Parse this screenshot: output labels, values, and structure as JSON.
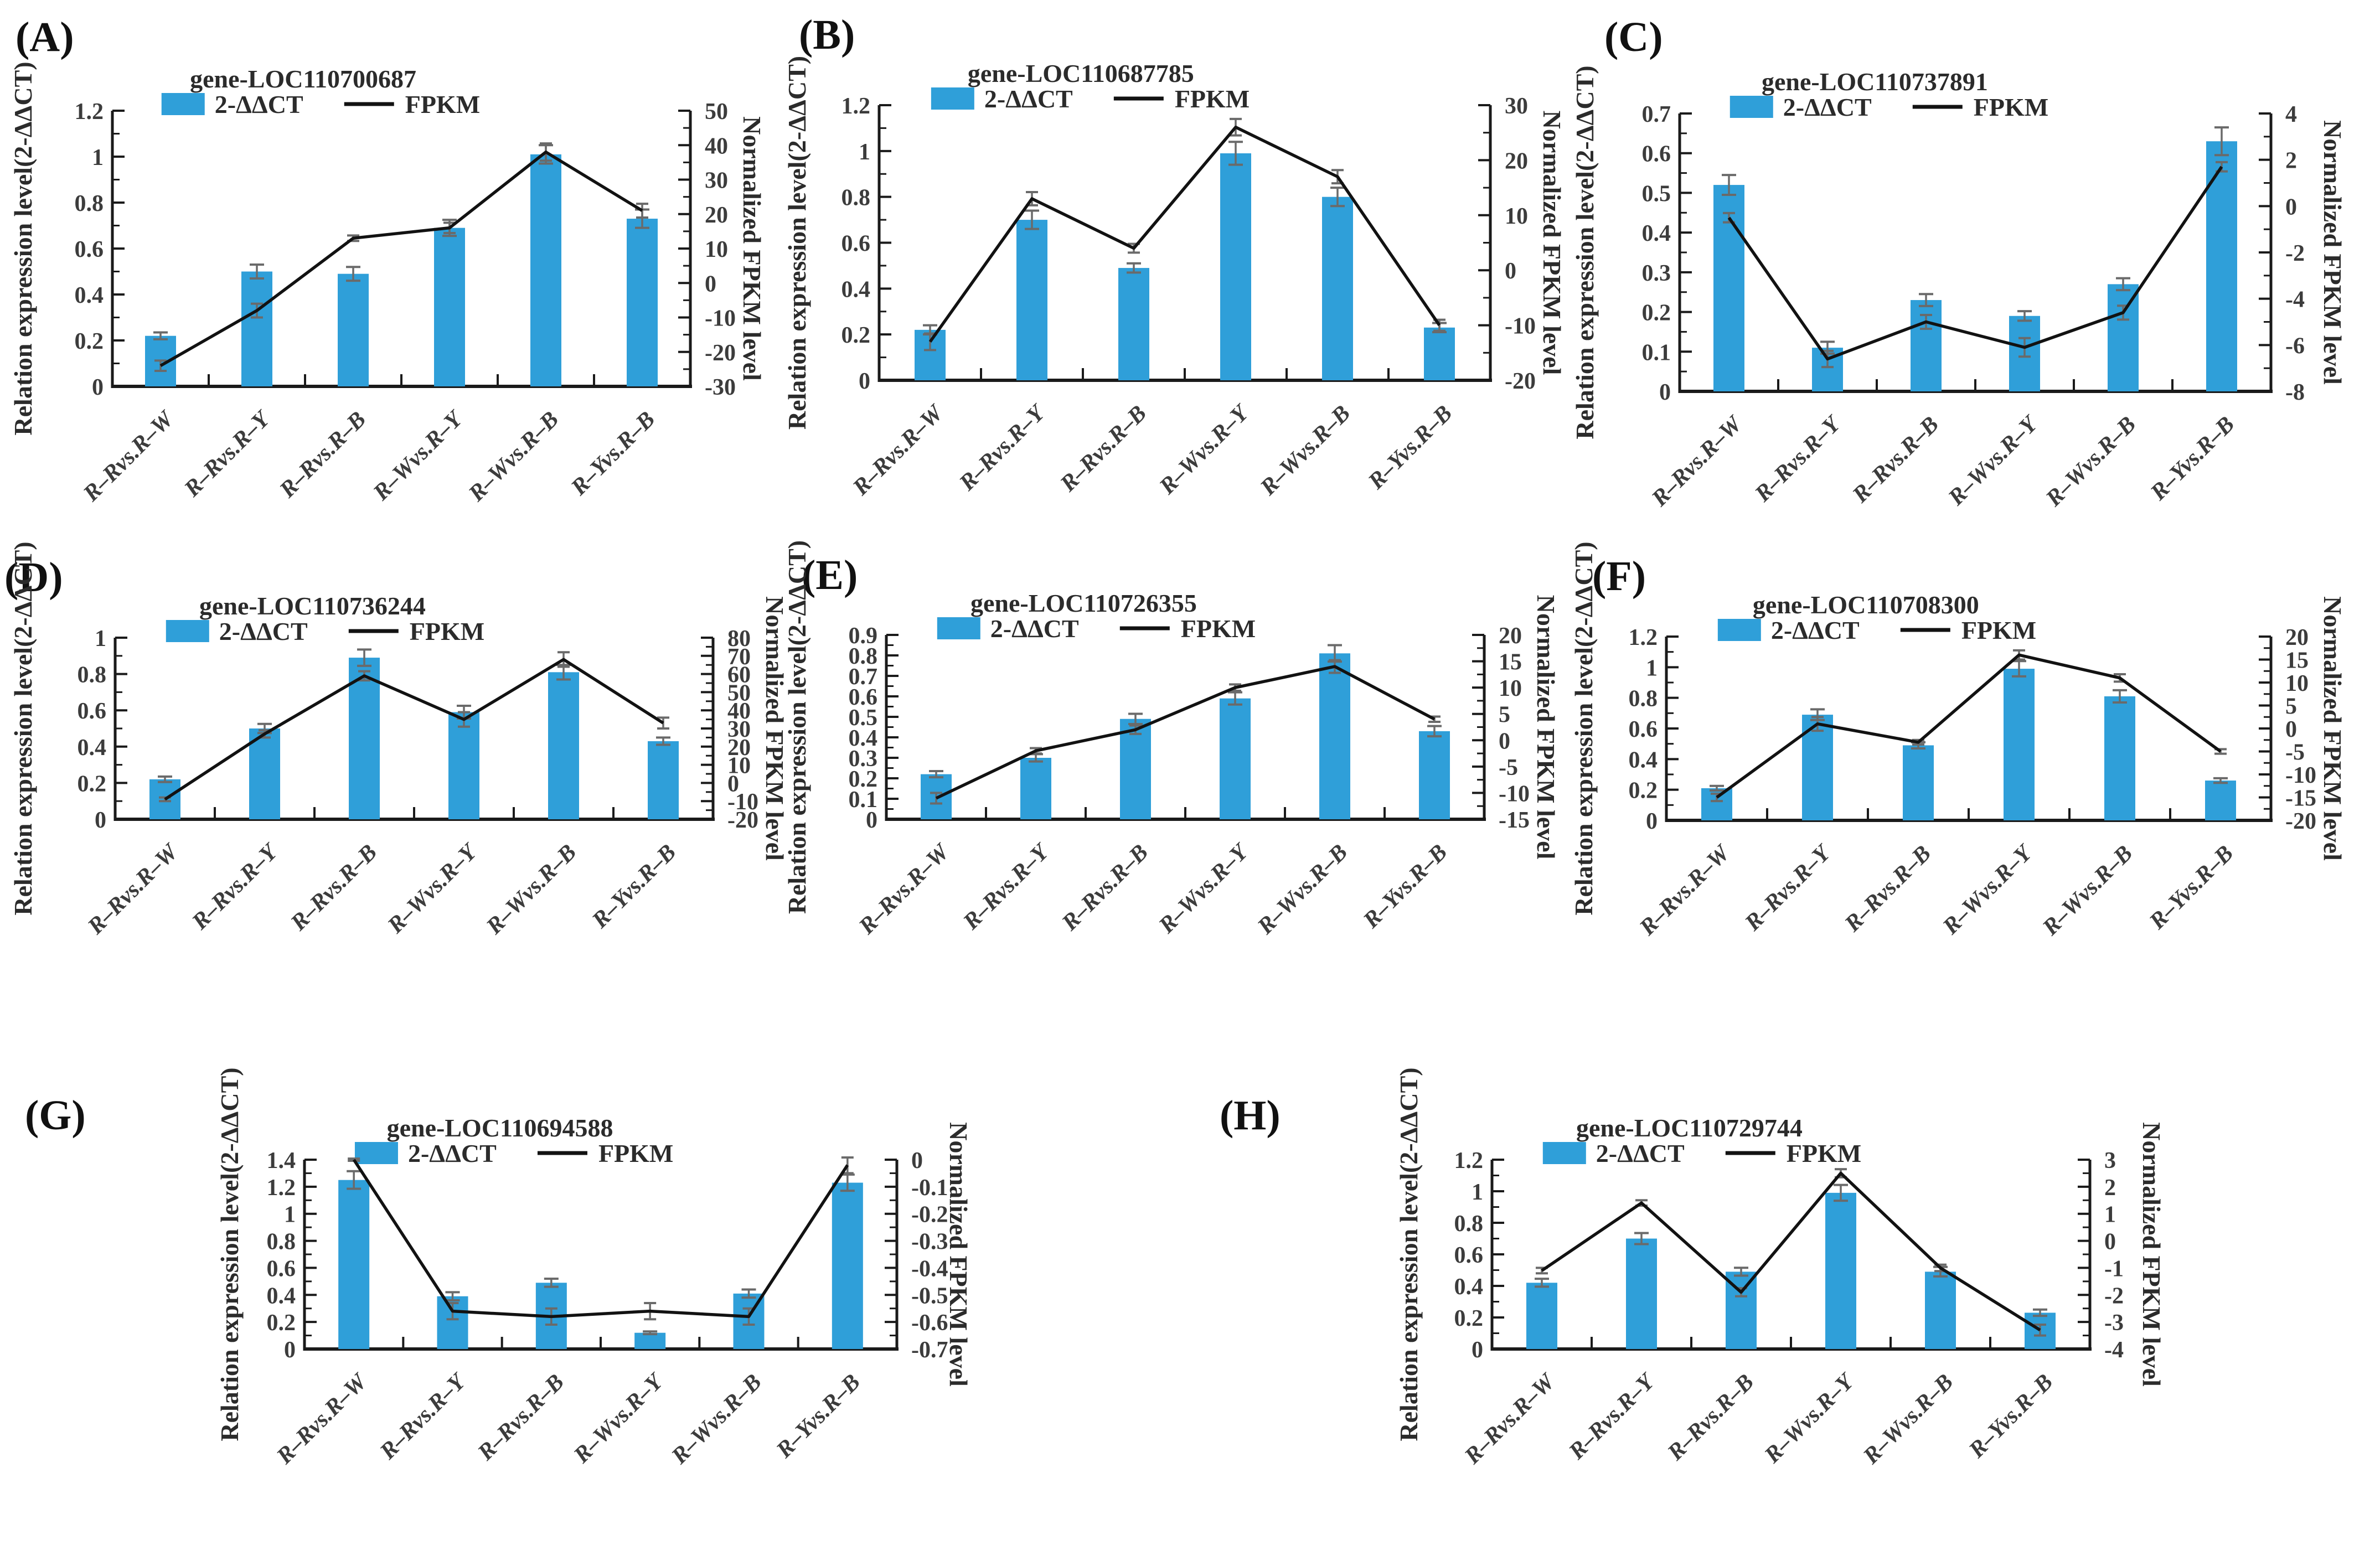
{
  "figure": {
    "left_axis_label": "Relation expression level(2-ΔΔCT)",
    "right_axis_label": "Normalized FPKM level",
    "legend_bar_label": "2-ΔΔCT",
    "legend_line_label": "FPKM",
    "colors": {
      "bar": "#2f9fd9",
      "line": "#121212",
      "error_bar": "#6a6a6a",
      "axis": "#1a1a1a",
      "tick_text": "#3c3c3c"
    },
    "categories": [
      "R–Rvs.R–W",
      "R–Rvs.R–Y",
      "R–Rvs.R–B",
      "R–Wvs.R–Y",
      "R–Wvs.R–B",
      "R–Yvs.R–B"
    ]
  },
  "chart_data": [
    {
      "type": "bar+line",
      "panel_label": "(A)",
      "title": "gene-LOC110700687",
      "categories": [
        "R–Rvs.R–W",
        "R–Rvs.R–Y",
        "R–Rvs.R–B",
        "R–Wvs.R–Y",
        "R–Wvs.R–B",
        "R–Yvs.R–B"
      ],
      "left_ylim": [
        0,
        1.2
      ],
      "left_ticks": [
        "0",
        "0.2",
        "0.4",
        "0.6",
        "0.8",
        "1",
        "1.2"
      ],
      "right_ylim": [
        -30,
        50
      ],
      "right_ticks": [
        "-30",
        "-20",
        "-10",
        "0",
        "10",
        "20",
        "30",
        "40",
        "50"
      ],
      "series": [
        {
          "name": "2-ΔΔCT",
          "type": "bar",
          "axis": "left",
          "values": [
            0.22,
            0.5,
            0.49,
            0.69,
            1.01,
            0.73
          ],
          "errors": [
            0.015,
            0.03,
            0.03,
            0.035,
            0.04,
            0.04
          ]
        },
        {
          "name": "FPKM",
          "type": "line",
          "axis": "right",
          "values": [
            -24,
            -8,
            13,
            16,
            38,
            21
          ],
          "errors": [
            1.5,
            2,
            0.8,
            1.5,
            2.5,
            2
          ]
        }
      ]
    },
    {
      "type": "bar+line",
      "panel_label": "(B)",
      "title": "gene-LOC110687785",
      "categories": [
        "R–Rvs.R–W",
        "R–Rvs.R–Y",
        "R–Rvs.R–B",
        "R–Wvs.R–Y",
        "R–Wvs.R–B",
        "R–Yvs.R–B"
      ],
      "left_ylim": [
        0,
        1.2
      ],
      "left_ticks": [
        "0",
        "0.2",
        "0.4",
        "0.6",
        "0.8",
        "1",
        "1.2"
      ],
      "right_ylim": [
        -20,
        30
      ],
      "right_ticks": [
        "-20",
        "-10",
        "0",
        "10",
        "20",
        "30"
      ],
      "series": [
        {
          "name": "2-ΔΔCT",
          "type": "bar",
          "axis": "left",
          "values": [
            0.22,
            0.7,
            0.49,
            0.99,
            0.8,
            0.23
          ],
          "errors": [
            0.02,
            0.04,
            0.02,
            0.05,
            0.04,
            0.02
          ]
        },
        {
          "name": "FPKM",
          "type": "line",
          "axis": "right",
          "values": [
            -13,
            13,
            4,
            26,
            17,
            -10
          ],
          "errors": [
            1.5,
            1.2,
            0.8,
            1.5,
            1.2,
            1
          ]
        }
      ]
    },
    {
      "type": "bar+line",
      "panel_label": "(C)",
      "title": "gene-LOC110737891",
      "categories": [
        "R–Rvs.R–W",
        "R–Rvs.R–Y",
        "R–Rvs.R–B",
        "R–Wvs.R–Y",
        "R–Wvs.R–B",
        "R–Yvs.R–B"
      ],
      "left_ylim": [
        0,
        0.7
      ],
      "left_ticks": [
        "0",
        "0.1",
        "0.2",
        "0.3",
        "0.4",
        "0.5",
        "0.6",
        "0.7"
      ],
      "right_ylim": [
        -8,
        4
      ],
      "right_ticks": [
        "-8",
        "-6",
        "-4",
        "-2",
        "0",
        "2",
        "4"
      ],
      "series": [
        {
          "name": "2-ΔΔCT",
          "type": "bar",
          "axis": "left",
          "values": [
            0.52,
            0.11,
            0.23,
            0.19,
            0.27,
            0.63
          ],
          "errors": [
            0.025,
            0.015,
            0.015,
            0.012,
            0.015,
            0.035
          ]
        },
        {
          "name": "FPKM",
          "type": "line",
          "axis": "right",
          "values": [
            -0.5,
            -6.6,
            -5,
            -6.1,
            -4.6,
            1.7
          ],
          "errors": [
            0.2,
            0.35,
            0.3,
            0.4,
            0.3,
            0.2
          ]
        }
      ]
    },
    {
      "type": "bar+line",
      "panel_label": "(D)",
      "title": "gene-LOC110736244",
      "categories": [
        "R–Rvs.R–W",
        "R–Rvs.R–Y",
        "R–Rvs.R–B",
        "R–Wvs.R–Y",
        "R–Wvs.R–B",
        "R–Yvs.R–B"
      ],
      "left_ylim": [
        0,
        1
      ],
      "left_ticks": [
        "0",
        "0.2",
        "0.4",
        "0.6",
        "0.8",
        "1"
      ],
      "right_ylim": [
        -20,
        80
      ],
      "right_ticks": [
        "-20",
        "-10",
        "0",
        "10",
        "20",
        "30",
        "40",
        "50",
        "60",
        "70",
        "80"
      ],
      "series": [
        {
          "name": "2-ΔΔCT",
          "type": "bar",
          "axis": "left",
          "values": [
            0.22,
            0.5,
            0.89,
            0.59,
            0.81,
            0.43
          ],
          "errors": [
            0.015,
            0.025,
            0.045,
            0.035,
            0.04,
            0.02
          ]
        },
        {
          "name": "FPKM",
          "type": "line",
          "axis": "right",
          "values": [
            -9,
            27,
            59,
            35,
            68,
            33
          ],
          "errors": [
            1,
            2,
            2.5,
            4,
            4,
            3
          ]
        }
      ]
    },
    {
      "type": "bar+line",
      "panel_label": "(E)",
      "title": "gene-LOC110726355",
      "categories": [
        "R–Rvs.R–W",
        "R–Rvs.R–Y",
        "R–Rvs.R–B",
        "R–Wvs.R–Y",
        "R–Wvs.R–B",
        "R–Yvs.R–B"
      ],
      "left_ylim": [
        0,
        0.9
      ],
      "left_ticks": [
        "0",
        "0.1",
        "0.2",
        "0.3",
        "0.4",
        "0.5",
        "0.6",
        "0.7",
        "0.8",
        "0.9"
      ],
      "right_ylim": [
        -15,
        20
      ],
      "right_ticks": [
        "-15",
        "-10",
        "-5",
        "0",
        "5",
        "10",
        "15",
        "20"
      ],
      "series": [
        {
          "name": "2-ΔΔCT",
          "type": "bar",
          "axis": "left",
          "values": [
            0.22,
            0.3,
            0.49,
            0.59,
            0.81,
            0.43
          ],
          "errors": [
            0.015,
            0.018,
            0.025,
            0.03,
            0.04,
            0.025
          ]
        },
        {
          "name": "FPKM",
          "type": "line",
          "axis": "right",
          "values": [
            -11,
            -2,
            2,
            10,
            14,
            4
          ],
          "errors": [
            1,
            0.5,
            0.8,
            0.6,
            1.2,
            0.5
          ]
        }
      ]
    },
    {
      "type": "bar+line",
      "panel_label": "(F)",
      "title": "gene-LOC110708300",
      "categories": [
        "R–Rvs.R–W",
        "R–Rvs.R–Y",
        "R–Rvs.R–B",
        "R–Wvs.R–Y",
        "R–Wvs.R–B",
        "R–Yvs.R–B"
      ],
      "left_ylim": [
        0,
        1.2
      ],
      "left_ticks": [
        "0",
        "0.2",
        "0.4",
        "0.6",
        "0.8",
        "1",
        "1.2"
      ],
      "right_ylim": [
        -20,
        20
      ],
      "right_ticks": [
        "-20",
        "-15",
        "-10",
        "-5",
        "0",
        "5",
        "10",
        "15",
        "20"
      ],
      "series": [
        {
          "name": "2-ΔΔCT",
          "type": "bar",
          "axis": "left",
          "values": [
            0.21,
            0.69,
            0.49,
            0.99,
            0.81,
            0.26
          ],
          "errors": [
            0.015,
            0.035,
            0.02,
            0.05,
            0.04,
            0.015
          ]
        },
        {
          "name": "FPKM",
          "type": "line",
          "axis": "right",
          "values": [
            -15,
            1,
            -3,
            16,
            11,
            -5
          ],
          "errors": [
            0.8,
            1.5,
            0.5,
            1,
            0.8,
            0.5
          ]
        }
      ]
    },
    {
      "type": "bar+line",
      "panel_label": "(G)",
      "title": "gene-LOC110694588",
      "categories": [
        "R–Rvs.R–W",
        "R–Rvs.R–Y",
        "R–Rvs.R–B",
        "R–Wvs.R–Y",
        "R–Wvs.R–B",
        "R–Yvs.R–B"
      ],
      "left_ylim": [
        0,
        1.4
      ],
      "left_ticks": [
        "0",
        "0.2",
        "0.4",
        "0.6",
        "0.8",
        "1",
        "1.2",
        "1.4"
      ],
      "right_ylim": [
        -0.7,
        0
      ],
      "right_ticks": [
        "-0.7",
        "-0.6",
        "-0.5",
        "-0.4",
        "-0.3",
        "-0.2",
        "-0.1",
        "0"
      ],
      "series": [
        {
          "name": "2-ΔΔCT",
          "type": "bar",
          "axis": "left",
          "values": [
            1.25,
            0.39,
            0.49,
            0.12,
            0.41,
            1.23
          ],
          "errors": [
            0.065,
            0.03,
            0.03,
            0.01,
            0.03,
            0.06
          ]
        },
        {
          "name": "FPKM",
          "type": "line",
          "axis": "right",
          "values": [
            0,
            -0.56,
            -0.58,
            -0.56,
            -0.58,
            -0.02
          ],
          "errors": [
            0.004,
            0.03,
            0.03,
            0.03,
            0.03,
            0.03
          ]
        }
      ]
    },
    {
      "type": "bar+line",
      "panel_label": "(H)",
      "title": "gene-LOC110729744",
      "categories": [
        "R–Rvs.R–W",
        "R–Rvs.R–Y",
        "R–Rvs.R–B",
        "R–Wvs.R–Y",
        "R–Wvs.R–B",
        "R–Yvs.R–B"
      ],
      "left_ylim": [
        0,
        1.2
      ],
      "left_ticks": [
        "0",
        "0.2",
        "0.4",
        "0.6",
        "0.8",
        "1",
        "1.2"
      ],
      "right_ylim": [
        -4,
        3
      ],
      "right_ticks": [
        "-4",
        "-3",
        "-2",
        "-1",
        "0",
        "1",
        "2",
        "3"
      ],
      "series": [
        {
          "name": "2-ΔΔCT",
          "type": "bar",
          "axis": "left",
          "values": [
            0.42,
            0.7,
            0.49,
            0.99,
            0.49,
            0.23
          ],
          "errors": [
            0.025,
            0.035,
            0.025,
            0.05,
            0.03,
            0.02
          ]
        },
        {
          "name": "FPKM",
          "type": "line",
          "axis": "right",
          "values": [
            -1.1,
            1.4,
            -1.9,
            2.5,
            -1,
            -3.3
          ],
          "errors": [
            0.1,
            0.1,
            0.15,
            0.15,
            0.12,
            0.2
          ]
        }
      ]
    }
  ]
}
